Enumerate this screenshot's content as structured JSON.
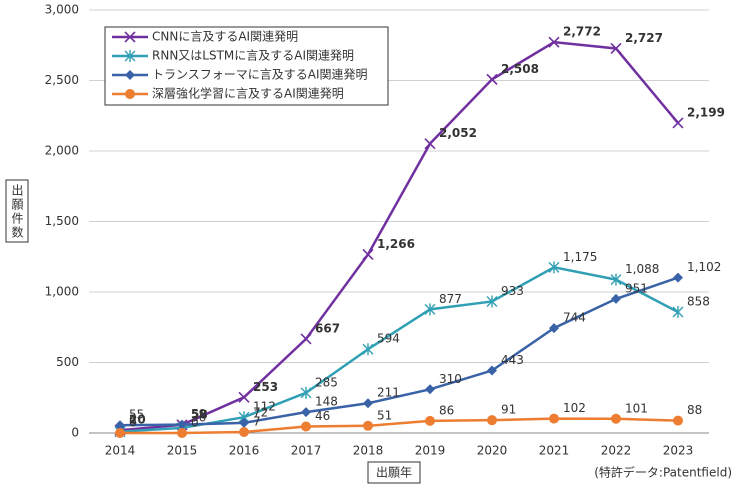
{
  "chart_data": {
    "type": "line",
    "categories": [
      "2014",
      "2015",
      "2016",
      "2017",
      "2018",
      "2019",
      "2020",
      "2021",
      "2022",
      "2023"
    ],
    "series": [
      {
        "name": "CNNに言及するAI関連発明",
        "color": "#7030a0",
        "marker": "x",
        "label_color": "#7030a0",
        "values": [
          20,
          58,
          253,
          667,
          1266,
          2052,
          2508,
          2772,
          2727,
          2199
        ],
        "value_labels": [
          "20",
          "58",
          "253",
          "667",
          "1,266",
          "2,052",
          "2,508",
          "2,772",
          "2,727",
          "2,199"
        ]
      },
      {
        "name": "RNN又はLSTMに言及するAI関連発明",
        "color": "#31a0b5",
        "marker": "asterisk",
        "label_color": "#6a9a4a",
        "values": [
          9,
          36,
          112,
          285,
          594,
          877,
          933,
          1175,
          1088,
          858
        ],
        "value_labels": [
          "9",
          "36",
          "112",
          "285",
          "594",
          "877",
          "933",
          "1,175",
          "1,088",
          "858"
        ]
      },
      {
        "name": "トランスフォーマに言及するAI関連発明",
        "color": "#3a62a7",
        "marker": "diamond",
        "label_color": "#2f4f8a",
        "values": [
          55,
          59,
          72,
          148,
          211,
          310,
          443,
          744,
          951,
          1102
        ],
        "value_labels": [
          "55",
          "59",
          "72",
          "148",
          "211",
          "310",
          "443",
          "744",
          "951",
          "1,102"
        ]
      },
      {
        "name": "深層強化学習に言及するAI関連発明",
        "color": "#ed7d31",
        "marker": "circle",
        "label_color": "#ed7d31",
        "values": [
          0,
          0,
          7,
          46,
          51,
          86,
          91,
          102,
          101,
          88
        ],
        "value_labels": [
          "0",
          "0",
          "7",
          "46",
          "51",
          "86",
          "91",
          "102",
          "101",
          "88"
        ]
      }
    ],
    "ylim": [
      0,
      3000
    ],
    "yticks": [
      0,
      500,
      {
        "value": 1000,
        "label": "1,000"
      },
      {
        "value": 1500,
        "label": "1,500"
      },
      {
        "value": 2000,
        "label": "2,000"
      },
      {
        "value": 2500,
        "label": "2,500"
      },
      {
        "value": 3000,
        "label": "3,000"
      }
    ],
    "grid": true,
    "ylabel": "出願件数",
    "xlabel": "出願年",
    "note": "(特許データ:Patentfield)",
    "legend": "upper left"
  }
}
